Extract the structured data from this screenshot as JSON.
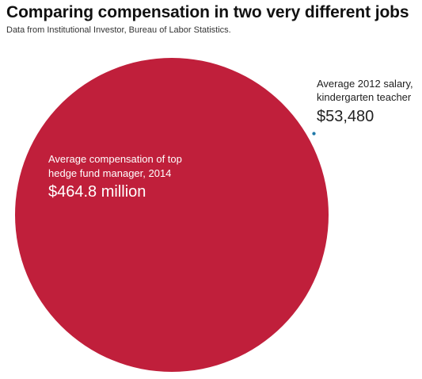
{
  "title": "Comparing compensation in two very different jobs",
  "subtitle": "Data from Institutional Investor, Bureau of Labor Statistics.",
  "chart_data": {
    "type": "bubble",
    "title": "Comparing compensation in two very different jobs",
    "subtitle": "Data from Institutional Investor, Bureau of Labor Statistics.",
    "encoding": "circle area proportional to value",
    "items": [
      {
        "label_lines": [
          "Average compensation of top",
          "hedge fund manager, 2014"
        ],
        "value_label": "$464.8 million",
        "value": 464800000,
        "color": "#c01f3b"
      },
      {
        "label_lines": [
          "Average 2012 salary,",
          "kindergarten teacher"
        ],
        "value_label": "$53,480",
        "value": 53480,
        "color": "#1f78a8"
      }
    ]
  }
}
